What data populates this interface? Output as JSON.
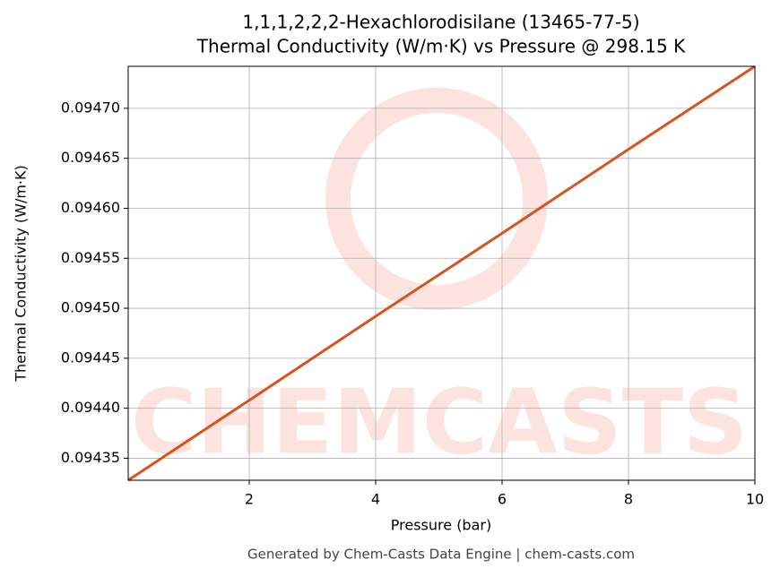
{
  "chart_data": {
    "type": "line",
    "title": "1,1,1,2,2,2-Hexachlorodisilane (13465-77-5)",
    "subtitle": "Thermal Conductivity (W/m·K) vs Pressure @ 298.15 K",
    "x_label": "Pressure (bar)",
    "y_label": "Thermal Conductivity (W/m·K)",
    "footer": "Generated by Chem-Casts Data Engine | chem-casts.com",
    "watermark": "CHEMCASTS",
    "x": [
      0.085,
      2,
      4,
      6,
      8,
      10
    ],
    "series": [
      {
        "name": "Thermal Conductivity",
        "color": "#d9531e",
        "values": [
          0.094328,
          0.094408,
          0.094492,
          0.094575,
          0.094659,
          0.094742
        ]
      }
    ],
    "xlim": [
      0.085,
      10
    ],
    "ylim": [
      0.094328,
      0.094742
    ],
    "xticks": [
      2,
      4,
      6,
      8,
      10
    ],
    "yticks": [
      {
        "value": 0.09435,
        "label": "0.09435"
      },
      {
        "value": 0.0944,
        "label": "0.09440"
      },
      {
        "value": 0.09445,
        "label": "0.09445"
      },
      {
        "value": 0.0945,
        "label": "0.09450"
      },
      {
        "value": 0.09455,
        "label": "0.09455"
      },
      {
        "value": 0.0946,
        "label": "0.09460"
      },
      {
        "value": 0.09465,
        "label": "0.09465"
      },
      {
        "value": 0.0947,
        "label": "0.09470"
      }
    ],
    "grid": true
  }
}
